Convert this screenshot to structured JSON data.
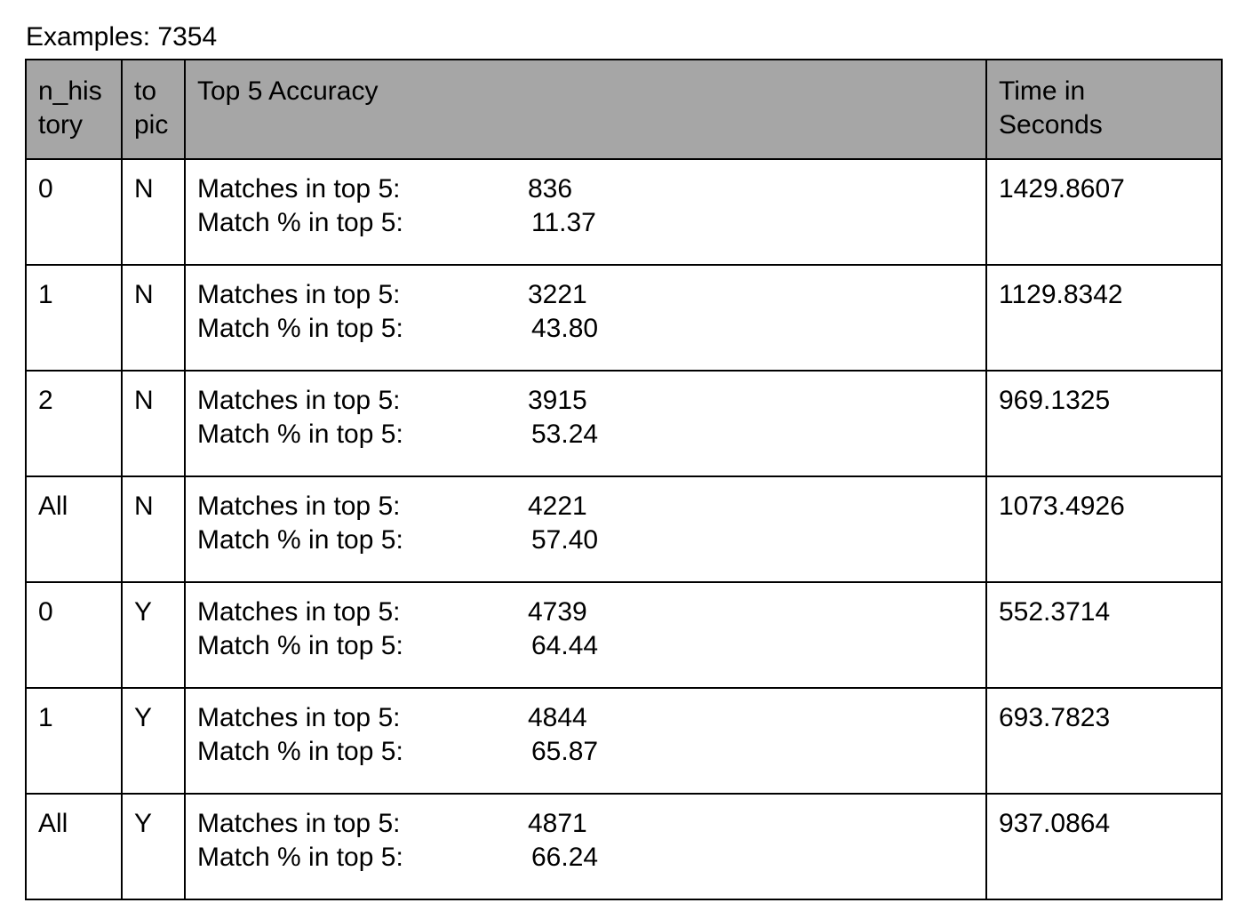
{
  "caption": "Examples: 7354",
  "headers": {
    "n_history": [
      "n_his",
      "tory"
    ],
    "topic": [
      "to",
      "pic"
    ],
    "accuracy": "Top 5 Accuracy",
    "time": [
      "Time in",
      "Seconds"
    ]
  },
  "metric_labels": {
    "matches": "Matches in top 5:",
    "percent": "Match % in top 5:"
  },
  "rows": [
    {
      "n_history": "0",
      "topic": "N",
      "matches": "836",
      "percent": "11.37",
      "time": "1429.8607"
    },
    {
      "n_history": "1",
      "topic": "N",
      "matches": "3221",
      "percent": "43.80",
      "time": "1129.8342"
    },
    {
      "n_history": "2",
      "topic": "N",
      "matches": "3915",
      "percent": "53.24",
      "time": "969.1325"
    },
    {
      "n_history": "All",
      "topic": "N",
      "matches": "4221",
      "percent": "57.40",
      "time": "1073.4926"
    },
    {
      "n_history": "0",
      "topic": "Y",
      "matches": "4739",
      "percent": "64.44",
      "time": "552.3714"
    },
    {
      "n_history": "1",
      "topic": "Y",
      "matches": "4844",
      "percent": "65.87",
      "time": "693.7823"
    },
    {
      "n_history": "All",
      "topic": "Y",
      "matches": "4871",
      "percent": "66.24",
      "time": "937.0864"
    }
  ]
}
